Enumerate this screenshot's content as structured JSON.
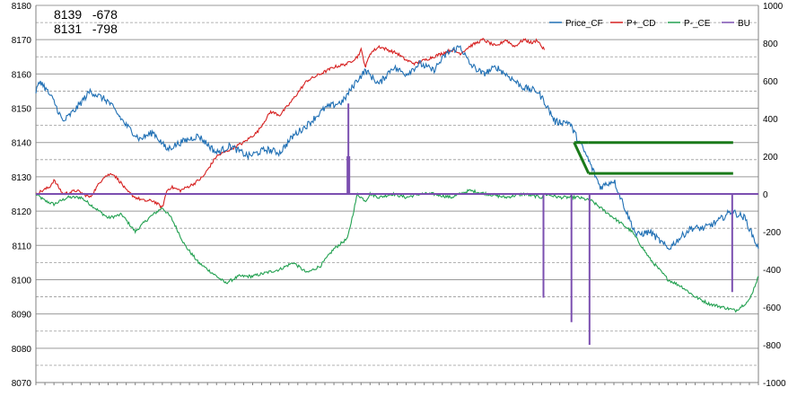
{
  "annotations": [
    {
      "price": "8139",
      "value": "-678"
    },
    {
      "price": "8131",
      "value": "-798"
    }
  ],
  "chart_data": {
    "type": "line",
    "title": "",
    "xlabel": "",
    "ylabel": "",
    "ylim": [
      8070,
      8180
    ],
    "y2lim": [
      -1000,
      1000
    ],
    "yticks": [
      8070,
      8080,
      8090,
      8100,
      8110,
      8120,
      8130,
      8140,
      8150,
      8160,
      8170,
      8180
    ],
    "y2ticks": [
      -1000,
      -800,
      -600,
      -400,
      -200,
      0,
      200,
      400,
      600,
      800,
      1000
    ],
    "grid": true,
    "legend_position": "top-right",
    "n_points": 800,
    "series": [
      {
        "name": "Price_CF",
        "axis": "left",
        "color": "#1f6fb4",
        "x": [
          0,
          5,
          20,
          30,
          45,
          60,
          80,
          100,
          115,
          130,
          145,
          160,
          180,
          200,
          215,
          235,
          255,
          270,
          285,
          300,
          320,
          340,
          355,
          365,
          380,
          395,
          410,
          425,
          440,
          455,
          470,
          480,
          495,
          510,
          525,
          540,
          555,
          563,
          575,
          590,
          600,
          610,
          625,
          640,
          655,
          665,
          680,
          700,
          725,
          740,
          755,
          770,
          785,
          800
        ],
        "values": [
          8155,
          8158,
          8152,
          8146,
          8150,
          8155,
          8152,
          8145,
          8141,
          8143,
          8138,
          8140,
          8142,
          8137,
          8139,
          8136,
          8138,
          8137,
          8142,
          8145,
          8150,
          8152,
          8158,
          8161,
          8157,
          8162,
          8160,
          8163,
          8161,
          8166,
          8168,
          8163,
          8160,
          8162,
          8159,
          8156,
          8155,
          8152,
          8146,
          8146,
          8141,
          8136,
          8127,
          8129,
          8119,
          8113,
          8114,
          8109,
          8115,
          8115,
          8117,
          8120,
          8118,
          8109
        ]
      },
      {
        "name": "P+_CD",
        "axis": "left",
        "color": "#d62020",
        "x": [
          0,
          15,
          20,
          30,
          45,
          60,
          75,
          85,
          95,
          100,
          110,
          120,
          130,
          135,
          140,
          145,
          150,
          160,
          175,
          185,
          200,
          215,
          230,
          245,
          260,
          270,
          280,
          300,
          315,
          330,
          345,
          356,
          360,
          365,
          370,
          380,
          390,
          400,
          410,
          420,
          440,
          460,
          470,
          480,
          495,
          510,
          520,
          530,
          540,
          550,
          555,
          560,
          563
        ],
        "values": [
          8125,
          8127,
          8129,
          8125,
          8126,
          8124,
          8130,
          8131,
          8128,
          8126,
          8124,
          8123,
          8123,
          8122,
          8121,
          8126,
          8127,
          8126,
          8128,
          8130,
          8136,
          8138,
          8140,
          8143,
          8149,
          8148,
          8151,
          8158,
          8160,
          8162,
          8163,
          8165,
          8167,
          8162,
          8166,
          8168,
          8167,
          8166,
          8164,
          8163,
          8165,
          8167,
          8166,
          8168,
          8170,
          8168,
          8170,
          8168,
          8170,
          8169,
          8170,
          8168,
          8167
        ]
      },
      {
        "name": "P-_CE",
        "axis": "left",
        "color": "#22a050",
        "x": [
          0,
          10,
          20,
          35,
          50,
          60,
          70,
          80,
          95,
          110,
          125,
          140,
          150,
          165,
          180,
          195,
          210,
          225,
          240,
          255,
          270,
          285,
          300,
          315,
          330,
          345,
          356,
          360,
          365,
          370,
          380,
          395,
          410,
          425,
          440,
          460,
          480,
          500,
          520,
          540,
          560,
          563,
          580,
          600,
          615,
          630,
          645,
          660,
          680,
          700,
          715,
          730,
          745,
          760,
          775,
          785,
          790,
          800
        ],
        "values": [
          8125,
          8123,
          8122,
          8124,
          8124,
          8122,
          8120,
          8118,
          8119,
          8114,
          8118,
          8121,
          8118,
          8110,
          8105,
          8102,
          8099,
          8101,
          8101,
          8102,
          8103,
          8105,
          8102,
          8104,
          8109,
          8112,
          8125,
          8124,
          8123,
          8125,
          8124,
          8125,
          8124,
          8125,
          8125,
          8124,
          8126,
          8125,
          8124,
          8125,
          8124,
          8125,
          8124,
          8124,
          8123,
          8120,
          8117,
          8114,
          8106,
          8100,
          8098,
          8095,
          8093,
          8092,
          8091,
          8093,
          8094,
          8101
        ]
      },
      {
        "name": "BU",
        "axis": "right",
        "color": "#7b4fb0",
        "spikes": [
          {
            "x": 344,
            "value": 0
          },
          {
            "x": 345,
            "value": 200
          },
          {
            "x": 346,
            "value": 480
          },
          {
            "x": 347,
            "value": 200
          },
          {
            "x": 348,
            "value": 0
          },
          {
            "x": 561,
            "value": 0
          },
          {
            "x": 562,
            "value": -550
          },
          {
            "x": 563,
            "value": 0
          },
          {
            "x": 592,
            "value": 0
          },
          {
            "x": 593,
            "value": -680
          },
          {
            "x": 594,
            "value": 0
          },
          {
            "x": 612,
            "value": 0
          },
          {
            "x": 613,
            "value": -800
          },
          {
            "x": 614,
            "value": 0
          },
          {
            "x": 770,
            "value": 0
          },
          {
            "x": 771,
            "value": -520
          },
          {
            "x": 772,
            "value": 0
          }
        ]
      }
    ],
    "reference_lines": [
      {
        "color": "#1a7a1a",
        "points": [
          [
            596,
            8140
          ],
          [
            612,
            8140
          ]
        ]
      },
      {
        "color": "#1a7a1a",
        "points": [
          [
            596,
            8140
          ],
          [
            612,
            8131
          ]
        ]
      },
      {
        "color": "#1a7a1a",
        "points": [
          [
            612,
            8140
          ],
          [
            772,
            8140
          ]
        ]
      },
      {
        "color": "#1a7a1a",
        "points": [
          [
            612,
            8131
          ],
          [
            772,
            8131
          ]
        ]
      }
    ]
  }
}
